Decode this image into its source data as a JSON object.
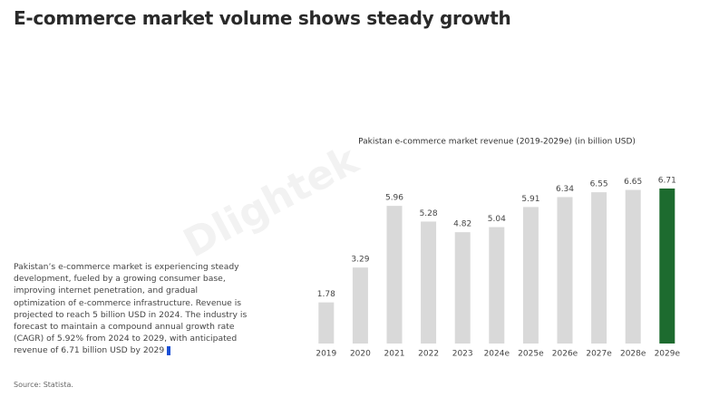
{
  "title": "E-commerce market volume shows steady growth",
  "description": "Pakistan’s e-commerce market is experiencing steady development, fueled by a growing consumer base, improving internet penetration, and gradual optimization of e-commerce infrastructure. Revenue is projected to reach 5 billion USD in 2024. The industry is forecast to maintain a compound annual growth rate (CAGR) of 5.92% from 2024 to 2029, with anticipated revenue of 6.71 billion USD by 2029",
  "source": "Source: Statista.",
  "watermark": "Dlightek",
  "chart_data": {
    "type": "bar",
    "title": "Pakistan e-commerce market revenue (2019-2029e) (in billion USD)",
    "categories": [
      "2019",
      "2020",
      "2021",
      "2022",
      "2023",
      "2024e",
      "2025e",
      "2026e",
      "2027e",
      "2028e",
      "2029e"
    ],
    "values": [
      1.78,
      3.29,
      5.96,
      5.28,
      4.82,
      5.04,
      5.91,
      6.34,
      6.55,
      6.65,
      6.71
    ],
    "colors": [
      "#d9d9d9",
      "#d9d9d9",
      "#d9d9d9",
      "#d9d9d9",
      "#d9d9d9",
      "#d9d9d9",
      "#d9d9d9",
      "#d9d9d9",
      "#d9d9d9",
      "#d9d9d9",
      "#1d6b2f"
    ]
  }
}
